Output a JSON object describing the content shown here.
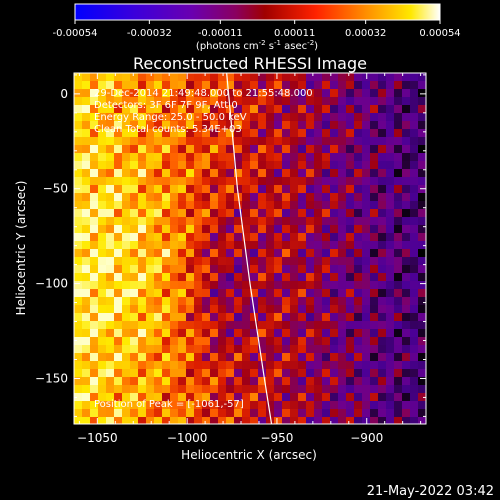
{
  "colorbar": {
    "ticks": [
      "-0.00054",
      "-0.00032",
      "-0.00011",
      "0.00011",
      "0.00032",
      "0.00054"
    ],
    "units_prefix": "(photons cm",
    "units_exp1": "-2",
    "units_mid": " s",
    "units_exp2": "-1",
    "units_mid2": " asec",
    "units_exp3": "-2",
    "units_suffix": ")"
  },
  "plot": {
    "title": "Reconstructed RHESSI Image",
    "info_lines": [
      "29-Dec-2014 21:49:48.000 to 21:55:48.000",
      "Detectors: 3F 6F 7F 9F, Att 0",
      "Energy Range: 25.0 - 50.0 keV",
      "Clean    Total counts: 5.34E+03"
    ],
    "peak_label": "Position of Peak = [-1061,-57]"
  },
  "footer": {
    "date": "21-May-2022 03:42"
  },
  "colors": {
    "background": "#000000",
    "foreground": "#ffffff",
    "colormap": [
      "#0000ff",
      "#4b00c8",
      "#7d0096",
      "#a00000",
      "#ff3000",
      "#ff9a00",
      "#ffff00",
      "#ffffff"
    ]
  },
  "chart_data": {
    "type": "heatmap",
    "title": "Reconstructed RHESSI Image",
    "xlabel": "Heliocentric X (arcsec)",
    "ylabel": "Heliocentric Y (arcsec)",
    "xlim": [
      -1063,
      -867
    ],
    "ylim": [
      -174,
      11
    ],
    "xticks": [
      -1050,
      -1000,
      -950,
      -900
    ],
    "yticks": [
      0,
      -50,
      -100,
      -150
    ],
    "colorbar_range": [
      -0.00054,
      0.00054
    ],
    "limb_line": [
      [
        -978,
        11
      ],
      [
        -972,
        -50
      ],
      [
        -965,
        -100
      ],
      [
        -957,
        -150
      ],
      [
        -953,
        -174
      ]
    ],
    "peak": [
      -1061,
      -57
    ]
  }
}
